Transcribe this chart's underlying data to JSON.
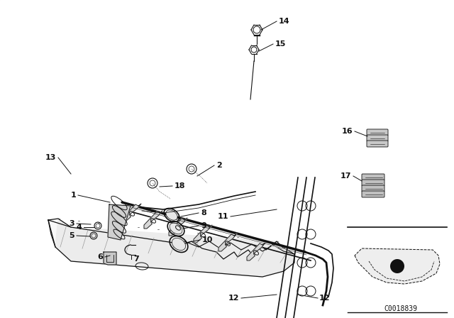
{
  "bg_color": "#f0f0eb",
  "line_color": "#111111",
  "figsize": [
    6.4,
    4.48
  ],
  "dpi": 100,
  "diagram_code_text": "C0018839"
}
